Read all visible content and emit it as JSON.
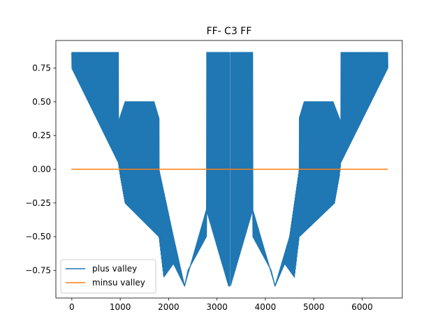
{
  "chart_data": {
    "type": "line",
    "title": "FF- C3 FF",
    "xlabel": "",
    "ylabel": "",
    "xlim": [
      -330,
      6830
    ],
    "ylim": [
      -0.955,
      0.955
    ],
    "x_ticks": [
      0,
      1000,
      2000,
      3000,
      4000,
      5000,
      6000
    ],
    "x_tick_labels": [
      "0",
      "1000",
      "2000",
      "3000",
      "4000",
      "5000",
      "6000"
    ],
    "y_ticks": [
      -0.75,
      -0.5,
      -0.25,
      0.0,
      0.25,
      0.5,
      0.75
    ],
    "y_tick_labels": [
      "−0.75",
      "−0.50",
      "−0.25",
      "0.00",
      "0.25",
      "0.50",
      "0.75"
    ],
    "grid": false,
    "legend_placement": "lower-left",
    "series": [
      {
        "name": "plus valley",
        "color": "#1f77b4",
        "style": "oscillating",
        "x_range": [
          0,
          6530
        ],
        "upper_envelope": {
          "x": [
            0,
            960,
            961,
            1100,
            1250,
            1700,
            1800,
            1801,
            2100,
            2330,
            2400,
            2780,
            2781,
            3240,
            3260,
            3280,
            3740,
            3741,
            4120,
            4200,
            4500,
            4700,
            4701,
            4800,
            5250,
            5400,
            5560,
            5561,
            6530
          ],
          "upper": [
            0.866,
            0.866,
            0.35,
            0.5,
            0.5,
            0.5,
            0.38,
            0.0,
            -0.5,
            -0.866,
            -0.75,
            -0.5,
            0.866,
            0.866,
            0.866,
            0.866,
            0.866,
            -0.5,
            -0.75,
            -0.866,
            -0.5,
            0.0,
            0.38,
            0.5,
            0.5,
            0.5,
            0.35,
            0.866,
            0.866
          ]
        },
        "lower_envelope": {
          "x": [
            0,
            960,
            1000,
            1100,
            1800,
            1801,
            1900,
            2100,
            2330,
            2780,
            3240,
            3260,
            3280,
            3740,
            4200,
            4400,
            4600,
            4700,
            4701,
            5430,
            5530,
            5560,
            6530
          ],
          "lower": [
            0.75,
            0.05,
            -0.05,
            -0.25,
            -0.5,
            -0.5,
            -0.8,
            -0.7,
            -0.866,
            -0.3,
            -0.866,
            -0.866,
            -0.866,
            -0.3,
            -0.866,
            -0.7,
            -0.8,
            -0.5,
            -0.5,
            -0.25,
            -0.05,
            0.05,
            0.75
          ]
        },
        "gap_x": [
          3260,
          3280
        ]
      },
      {
        "name": "minsu valley",
        "color": "#ff7f0e",
        "x": [
          -10,
          6530
        ],
        "y": [
          0.0,
          0.0
        ]
      }
    ]
  }
}
